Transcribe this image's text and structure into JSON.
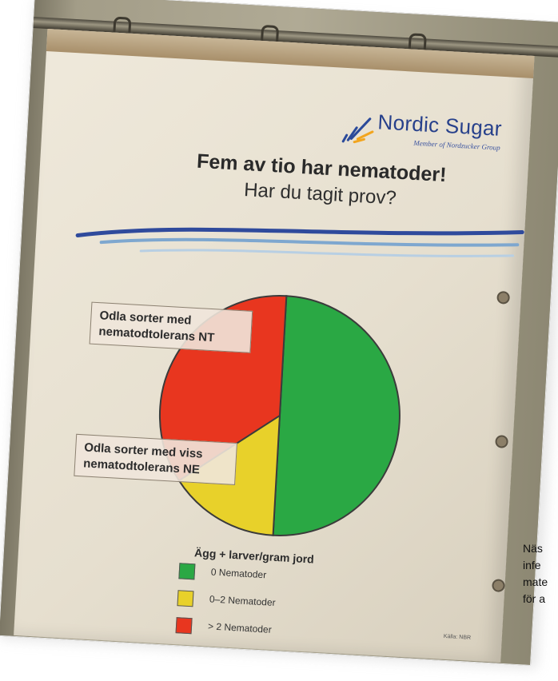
{
  "logo": {
    "name": "Nordic Sugar",
    "tagline": "Member of Nordzucker Group"
  },
  "poster": {
    "headline": "Fem av tio har nematoder!",
    "subheadline": "Har du tagit prov?",
    "callout_nt": "Odla sorter med nematodtolerans NT",
    "callout_ne": "Odla sorter med viss nematodtolerans NE",
    "legend_title": "Ägg + larver/gram jord",
    "source": "Källa: NBR"
  },
  "chart_data": {
    "type": "pie",
    "labels": [
      "0 Nematoder",
      "0–2 Nematoder",
      "> 2 Nematoder"
    ],
    "values": [
      50,
      15,
      35
    ],
    "colors": [
      "#2aa844",
      "#e8d12a",
      "#e8361f"
    ],
    "title": "",
    "legend_title": "Ägg + larver/gram jord",
    "legend_position": "bottom"
  },
  "caption": {
    "lines": [
      "Näs",
      "infe",
      "mate",
      "för a"
    ]
  }
}
